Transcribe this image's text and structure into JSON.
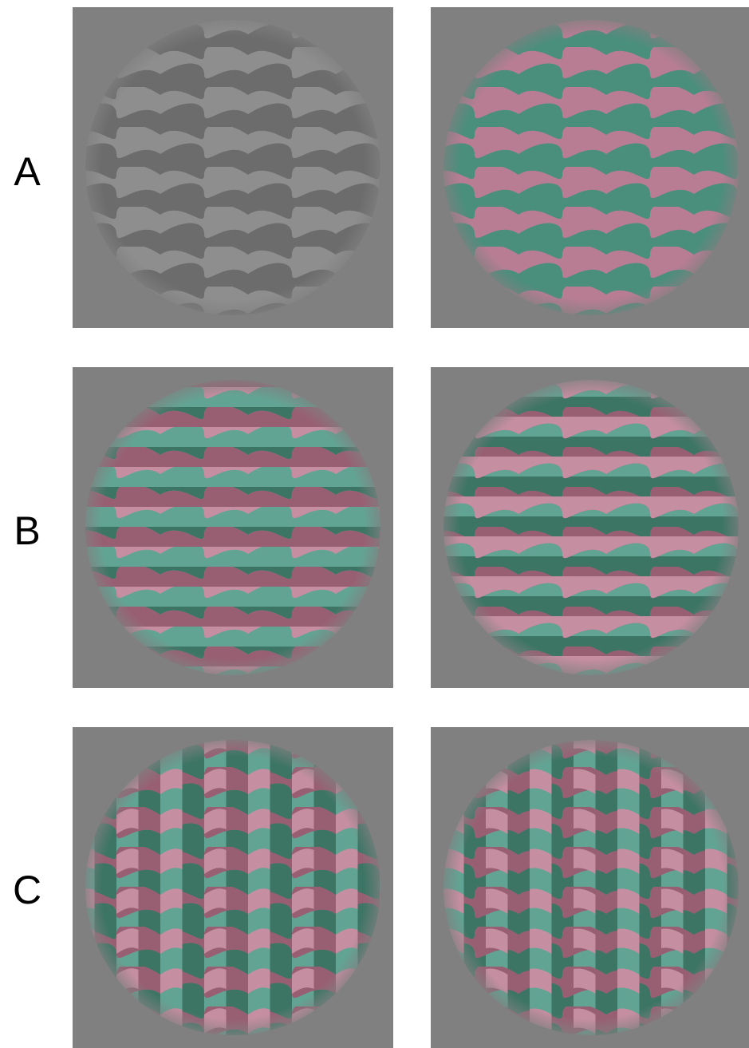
{
  "figure": {
    "rows": [
      {
        "label": "A",
        "panels": [
          {
            "name": "luminance-waves",
            "stimulus": "wavy-luminance-grating"
          },
          {
            "name": "color-waves",
            "stimulus": "wavy-red-green-grating"
          }
        ]
      },
      {
        "label": "B",
        "panels": [
          {
            "name": "color-waves-luminance-stripes",
            "stimulus": "wavy-color-with-horizontal-luminance"
          },
          {
            "name": "color-waves-luminance-stripes-shifted",
            "stimulus": "wavy-color-with-horizontal-luminance-shifted"
          }
        ]
      },
      {
        "label": "C",
        "panels": [
          {
            "name": "color-waves-vertical-luminance",
            "stimulus": "wavy-color-with-vertical-luminance"
          },
          {
            "name": "color-waves-vertical-luminance-shifted",
            "stimulus": "wavy-color-with-vertical-luminance-shifted"
          }
        ]
      }
    ],
    "colors": {
      "background": "#808080",
      "light_gray": "#8e8e8e",
      "dark_gray": "#6c6c6c",
      "pink": "#b87d93",
      "light_pink": "#c68ea1",
      "dark_pink": "#985f73",
      "teal": "#4a8e7c",
      "light_teal": "#62a493",
      "dark_teal": "#3d7565"
    }
  }
}
